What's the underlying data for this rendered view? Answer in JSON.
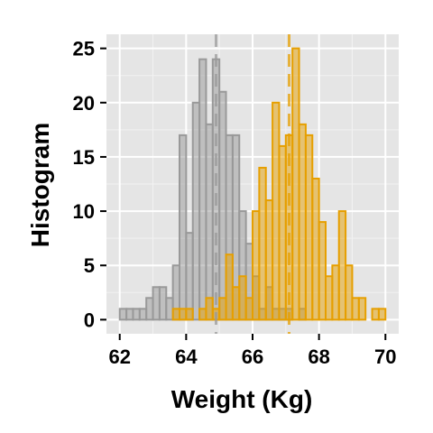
{
  "chart_data": {
    "type": "histogram",
    "xlabel": "Weight (Kg)",
    "ylabel": "Histogram",
    "xlim": [
      61.6,
      70.4
    ],
    "ylim": [
      -1.3,
      26.3
    ],
    "x_ticks": [
      62,
      64,
      66,
      68,
      70
    ],
    "y_ticks": [
      0,
      5,
      10,
      15,
      20,
      25
    ],
    "grid": true,
    "bin_width": 0.2,
    "series": [
      {
        "color": "#999999",
        "mean": 64.9,
        "bins": [
          {
            "x0": 61.8,
            "count": 0
          },
          {
            "x0": 62.0,
            "count": 1
          },
          {
            "x0": 62.2,
            "count": 1
          },
          {
            "x0": 62.4,
            "count": 1
          },
          {
            "x0": 62.6,
            "count": 1
          },
          {
            "x0": 62.8,
            "count": 2
          },
          {
            "x0": 63.0,
            "count": 3
          },
          {
            "x0": 63.2,
            "count": 3
          },
          {
            "x0": 63.4,
            "count": 2
          },
          {
            "x0": 63.6,
            "count": 5
          },
          {
            "x0": 63.8,
            "count": 17
          },
          {
            "x0": 64.0,
            "count": 8
          },
          {
            "x0": 64.2,
            "count": 20
          },
          {
            "x0": 64.4,
            "count": 24
          },
          {
            "x0": 64.6,
            "count": 18
          },
          {
            "x0": 64.8,
            "count": 24
          },
          {
            "x0": 65.0,
            "count": 21
          },
          {
            "x0": 65.2,
            "count": 17
          },
          {
            "x0": 65.4,
            "count": 17
          },
          {
            "x0": 65.6,
            "count": 10
          },
          {
            "x0": 65.8,
            "count": 7
          },
          {
            "x0": 66.0,
            "count": 4
          },
          {
            "x0": 66.2,
            "count": 1
          },
          {
            "x0": 66.4,
            "count": 3
          },
          {
            "x0": 66.6,
            "count": 1
          },
          {
            "x0": 66.8,
            "count": 1
          },
          {
            "x0": 67.0,
            "count": 1
          },
          {
            "x0": 67.2,
            "count": 0
          },
          {
            "x0": 67.4,
            "count": 1
          }
        ]
      },
      {
        "color": "#E69F00",
        "mean": 67.1,
        "bins": [
          {
            "x0": 61.8,
            "count": 0
          },
          {
            "x0": 62.0,
            "count": 0
          },
          {
            "x0": 62.2,
            "count": 0
          },
          {
            "x0": 62.4,
            "count": 0
          },
          {
            "x0": 62.6,
            "count": 0
          },
          {
            "x0": 62.8,
            "count": 0
          },
          {
            "x0": 63.0,
            "count": 0
          },
          {
            "x0": 63.2,
            "count": 0
          },
          {
            "x0": 63.4,
            "count": 0
          },
          {
            "x0": 63.6,
            "count": 1
          },
          {
            "x0": 63.8,
            "count": 1
          },
          {
            "x0": 64.0,
            "count": 1
          },
          {
            "x0": 64.2,
            "count": 0
          },
          {
            "x0": 64.4,
            "count": 1
          },
          {
            "x0": 64.6,
            "count": 2
          },
          {
            "x0": 64.8,
            "count": 1
          },
          {
            "x0": 65.0,
            "count": 2
          },
          {
            "x0": 65.2,
            "count": 6
          },
          {
            "x0": 65.4,
            "count": 3
          },
          {
            "x0": 65.6,
            "count": 4
          },
          {
            "x0": 65.8,
            "count": 2
          },
          {
            "x0": 66.0,
            "count": 10
          },
          {
            "x0": 66.2,
            "count": 14
          },
          {
            "x0": 66.4,
            "count": 11
          },
          {
            "x0": 66.6,
            "count": 20
          },
          {
            "x0": 66.8,
            "count": 16
          },
          {
            "x0": 67.0,
            "count": 17
          },
          {
            "x0": 67.2,
            "count": 25
          },
          {
            "x0": 67.4,
            "count": 18
          },
          {
            "x0": 67.6,
            "count": 17
          },
          {
            "x0": 67.8,
            "count": 13
          },
          {
            "x0": 68.0,
            "count": 9
          },
          {
            "x0": 68.2,
            "count": 4
          },
          {
            "x0": 68.4,
            "count": 5
          },
          {
            "x0": 68.6,
            "count": 10
          },
          {
            "x0": 68.8,
            "count": 5
          },
          {
            "x0": 69.0,
            "count": 2
          },
          {
            "x0": 69.2,
            "count": 2
          },
          {
            "x0": 69.4,
            "count": 0
          },
          {
            "x0": 69.6,
            "count": 1
          },
          {
            "x0": 69.8,
            "count": 1
          },
          {
            "x0": 70.0,
            "count": 0
          }
        ]
      }
    ]
  }
}
